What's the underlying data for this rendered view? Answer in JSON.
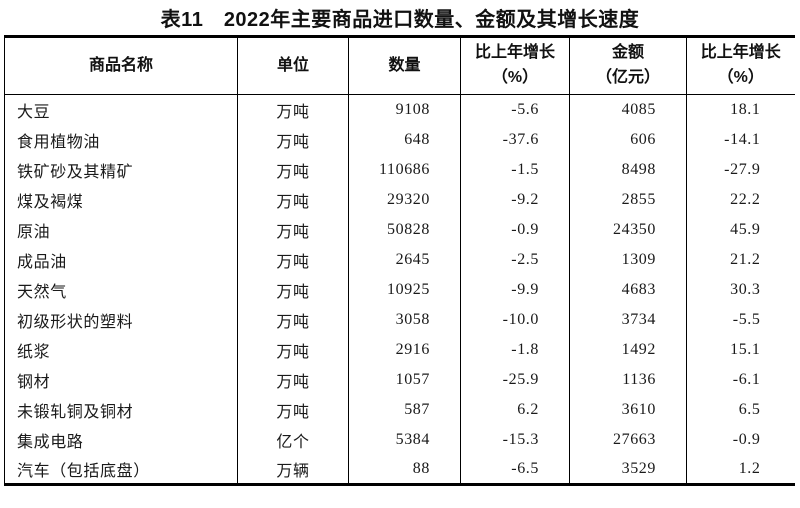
{
  "title": "表11　2022年主要商品进口数量、金额及其增长速度",
  "colors": {
    "background": "#ffffff",
    "text": "#1a1a1a",
    "border": "#000000"
  },
  "table": {
    "columns": [
      {
        "key": "name",
        "label": "商品名称"
      },
      {
        "key": "unit",
        "label": "单位"
      },
      {
        "key": "quantity",
        "label": "数量"
      },
      {
        "key": "quantity-growth",
        "label": "比上年增长",
        "sub": "（%）"
      },
      {
        "key": "amount",
        "label": "金额",
        "sub": "（亿元）"
      },
      {
        "key": "amount-growth",
        "label": "比上年增长",
        "sub": "（%）"
      }
    ],
    "rows": [
      [
        "大豆",
        "万吨",
        "9108",
        "-5.6",
        "4085",
        "18.1"
      ],
      [
        "食用植物油",
        "万吨",
        "648",
        "-37.6",
        "606",
        "-14.1"
      ],
      [
        "铁矿砂及其精矿",
        "万吨",
        "110686",
        "-1.5",
        "8498",
        "-27.9"
      ],
      [
        "煤及褐煤",
        "万吨",
        "29320",
        "-9.2",
        "2855",
        "22.2"
      ],
      [
        "原油",
        "万吨",
        "50828",
        "-0.9",
        "24350",
        "45.9"
      ],
      [
        "成品油",
        "万吨",
        "2645",
        "-2.5",
        "1309",
        "21.2"
      ],
      [
        "天然气",
        "万吨",
        "10925",
        "-9.9",
        "4683",
        "30.3"
      ],
      [
        "初级形状的塑料",
        "万吨",
        "3058",
        "-10.0",
        "3734",
        "-5.5"
      ],
      [
        "纸浆",
        "万吨",
        "2916",
        "-1.8",
        "1492",
        "15.1"
      ],
      [
        "钢材",
        "万吨",
        "1057",
        "-25.9",
        "1136",
        "-6.1"
      ],
      [
        "未锻轧铜及铜材",
        "万吨",
        "587",
        "6.2",
        "3610",
        "6.5"
      ],
      [
        "集成电路",
        "亿个",
        "5384",
        "-15.3",
        "27663",
        "-0.9"
      ],
      [
        "汽车（包括底盘）",
        "万辆",
        "88",
        "-6.5",
        "3529",
        "1.2"
      ]
    ]
  }
}
